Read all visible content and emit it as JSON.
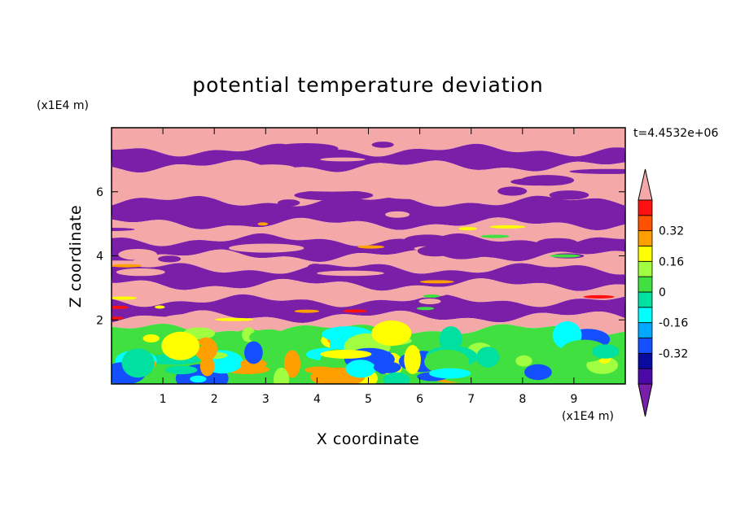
{
  "chart_data": {
    "type": "heatmap",
    "title": "potential temperature deviation",
    "xlabel": "X coordinate",
    "ylabel": "Z coordinate",
    "x_unit": "(x1E4 m)",
    "y_unit": "(x1E4 m)",
    "time_label": "t=4.4532e+06",
    "xlim": [
      0,
      10
    ],
    "ylim": [
      0,
      8
    ],
    "x_ticks": [
      "1",
      "2",
      "3",
      "4",
      "5",
      "6",
      "7",
      "8",
      "9"
    ],
    "y_ticks": [
      "2",
      "4",
      "6"
    ],
    "colorbar": {
      "levels": [
        -0.48,
        -0.4,
        -0.32,
        -0.24,
        -0.16,
        -0.08,
        0,
        0.08,
        0.16,
        0.24,
        0.32,
        0.4,
        0.48
      ],
      "tick_labels": [
        "0.32",
        "0.16",
        "0",
        "-0.16",
        "-0.32"
      ],
      "tick_values": [
        0.32,
        0.16,
        0,
        -0.16,
        -0.32
      ],
      "colors": [
        "#7a1fa8",
        "#4b0aa8",
        "#0a0aa0",
        "#1450ff",
        "#00a8ff",
        "#00ffff",
        "#00e0a0",
        "#40e040",
        "#a0ff40",
        "#ffff00",
        "#ffa000",
        "#ff5000",
        "#ff1010",
        "#f4a8a8"
      ],
      "extend": "both"
    },
    "layers": [
      {
        "z_from": 7.3,
        "z_to": 8.0,
        "value": 0.5
      },
      {
        "z_from": 6.8,
        "z_to": 7.3,
        "value": -0.5
      },
      {
        "z_from": 5.7,
        "z_to": 6.8,
        "value": 0.5
      },
      {
        "z_from": 5.0,
        "z_to": 5.7,
        "value": -0.5
      },
      {
        "z_from": 4.5,
        "z_to": 5.0,
        "value": 0.5
      },
      {
        "z_from": 4.0,
        "z_to": 4.5,
        "value": -0.5
      },
      {
        "z_from": 3.6,
        "z_to": 4.0,
        "value": 0.5
      },
      {
        "z_from": 3.1,
        "z_to": 3.6,
        "value": -0.5
      },
      {
        "z_from": 2.6,
        "z_to": 3.1,
        "value": 0.5
      },
      {
        "z_from": 2.1,
        "z_to": 2.6,
        "value": -0.5
      },
      {
        "z_from": 1.7,
        "z_to": 2.1,
        "value": 0.5
      },
      {
        "z_from": 0.0,
        "z_to": 1.7,
        "value": 0.0
      }
    ]
  }
}
